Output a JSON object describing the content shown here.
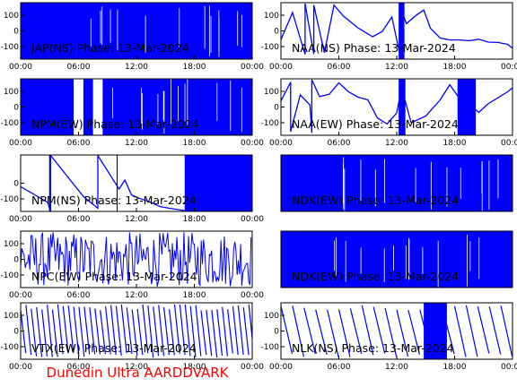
{
  "footer_title": "Dunedin Ultra AARDDVARK",
  "colors": {
    "trace": "#0000ff",
    "axes": "#000000",
    "footer": "#ff0000"
  },
  "chart_data": [
    {
      "type": "line",
      "title": "JAP(NS) Phase: 13-Mar-2024",
      "x_ticks": [
        "00:00",
        "06:00",
        "12:00",
        "18:00",
        "00:00"
      ],
      "y_ticks": [
        100,
        0,
        -100
      ],
      "ylim": [
        -180,
        180
      ],
      "series": [
        {
          "style": "dense-noise",
          "segments": [
            [
              0,
              24
            ]
          ]
        }
      ]
    },
    {
      "type": "line",
      "title": "NAA(NS) Phase: 13-Mar-2024",
      "x_ticks": [
        "00:00",
        "06:00",
        "12:00",
        "18:00",
        "00:00"
      ],
      "y_ticks": [
        100,
        0,
        -100
      ],
      "ylim": [
        -180,
        180
      ],
      "series": [
        {
          "style": "phase-drift",
          "points": [
            [
              0,
              -60
            ],
            [
              1.2,
              120
            ],
            [
              2.5,
              -150
            ],
            [
              2.5,
              170
            ],
            [
              3.4,
              -150
            ],
            [
              3.4,
              170
            ],
            [
              4.5,
              -140
            ],
            [
              5.5,
              170
            ],
            [
              6.5,
              90
            ],
            [
              8,
              20
            ],
            [
              9.5,
              -40
            ],
            [
              10.5,
              0
            ],
            [
              11.5,
              90
            ],
            [
              12.3,
              -140
            ],
            [
              12.3,
              170
            ],
            [
              13,
              40
            ],
            [
              14,
              100
            ],
            [
              14.8,
              140
            ],
            [
              15.5,
              20
            ],
            [
              16.5,
              -40
            ],
            [
              17.5,
              -60
            ],
            [
              18.5,
              -50
            ],
            [
              19.5,
              -60
            ],
            [
              20.5,
              -50
            ],
            [
              21.5,
              -70
            ],
            [
              22.5,
              -70
            ],
            [
              23.5,
              -90
            ],
            [
              24,
              -110
            ]
          ],
          "bands": [
            [
              12.2,
              12.8
            ]
          ]
        }
      ]
    },
    {
      "type": "line",
      "title": "NPM(EW) Phase: 13-Mar-2024",
      "x_ticks": [
        "00:00",
        "06:00",
        "12:00",
        "18:00",
        "00:00"
      ],
      "y_ticks": [
        100,
        0,
        -100
      ],
      "ylim": [
        -180,
        180
      ],
      "series": [
        {
          "style": "dense-noise",
          "segments": [
            [
              0,
              5.5
            ],
            [
              6.5,
              7.5
            ],
            [
              8.5,
              24
            ]
          ]
        }
      ]
    },
    {
      "type": "line",
      "title": "NAA(EW) Phase: 13-Mar-2024",
      "x_ticks": [
        "00:00",
        "06:00",
        "12:00",
        "18:00",
        "00:00"
      ],
      "y_ticks": [
        100,
        0,
        -100
      ],
      "ylim": [
        -180,
        180
      ],
      "series": [
        {
          "style": "phase-drift",
          "points": [
            [
              0,
              40
            ],
            [
              1,
              160
            ],
            [
              1,
              -150
            ],
            [
              2,
              80
            ],
            [
              3,
              10
            ],
            [
              3.2,
              -170
            ],
            [
              3.2,
              170
            ],
            [
              4,
              60
            ],
            [
              5,
              80
            ],
            [
              6,
              150
            ],
            [
              7,
              100
            ],
            [
              8,
              70
            ],
            [
              9,
              50
            ],
            [
              10,
              -70
            ],
            [
              11,
              -110
            ],
            [
              12,
              -40
            ],
            [
              12.5,
              120
            ],
            [
              13.5,
              -100
            ],
            [
              15,
              -60
            ],
            [
              16.5,
              40
            ],
            [
              17.5,
              140
            ],
            [
              18.5,
              60
            ],
            [
              19.5,
              20
            ],
            [
              20.5,
              -30
            ],
            [
              21.5,
              20
            ],
            [
              22.5,
              60
            ],
            [
              23.5,
              100
            ],
            [
              24,
              120
            ]
          ],
          "bands": [
            [
              12.2,
              12.9
            ],
            [
              18.3,
              20.2
            ]
          ]
        }
      ]
    },
    {
      "type": "line",
      "title": "NPM(NS) Phase: 13-Mar-2024",
      "x_ticks": [
        "00:00",
        "06:00",
        "12:00",
        "18:00",
        "00:00"
      ],
      "y_ticks": [
        0,
        -100
      ],
      "ylim": [
        -180,
        180
      ],
      "series": [
        {
          "style": "phase-drift",
          "points": [
            [
              0,
              -20
            ],
            [
              2.8,
              -120
            ],
            [
              3.1,
              -180
            ],
            [
              3.1,
              180
            ],
            [
              6.5,
              -80
            ],
            [
              8,
              -160
            ],
            [
              8,
              170
            ],
            [
              10.2,
              -40
            ],
            [
              10.8,
              20
            ],
            [
              11.5,
              -80
            ],
            [
              12.3,
              -100
            ],
            [
              13.5,
              -120
            ],
            [
              14.5,
              -150
            ],
            [
              15.5,
              -160
            ],
            [
              17,
              -170
            ]
          ],
          "bands": [
            [
              17,
              24
            ]
          ],
          "vlines": [
            3,
            10
          ]
        }
      ]
    },
    {
      "type": "line",
      "title": "NDK(EW) Phase: 13-Mar-2024",
      "x_ticks": [],
      "y_ticks": [],
      "ylim": [
        -180,
        180
      ],
      "series": [
        {
          "style": "dense-noise",
          "segments": [
            [
              0,
              24
            ]
          ]
        }
      ]
    },
    {
      "type": "line",
      "title": "NPC(EW) Phase: 13-Mar-2024",
      "x_ticks": [
        "00:00",
        "06:00",
        "12:00",
        "18:00",
        "00:00"
      ],
      "y_ticks": [
        100,
        0,
        -100
      ],
      "ylim": [
        -180,
        180
      ],
      "series": [
        {
          "style": "oscillating",
          "segments": [
            [
              0,
              24
            ]
          ]
        }
      ]
    },
    {
      "type": "line",
      "title": "NDK(EW) Phase: 13-Mar-2024",
      "x_ticks": [],
      "y_ticks": [],
      "ylim": [
        -180,
        180
      ],
      "series": [
        {
          "style": "dense-noise",
          "segments": [
            [
              0,
              24
            ]
          ]
        }
      ]
    },
    {
      "type": "line",
      "title": "VTX(EW) Phase: 13-Mar-2024",
      "x_ticks": [
        "00:00",
        "06:00",
        "12:00",
        "18:00",
        "00:00"
      ],
      "y_ticks": [
        100,
        0,
        -100
      ],
      "ylim": [
        -180,
        180
      ],
      "series": [
        {
          "style": "sawtooth",
          "period_h": 0.55,
          "segments": [
            [
              0,
              24
            ]
          ]
        }
      ]
    },
    {
      "type": "line",
      "title": "NLK(NS) Phase: 13-Mar-2024",
      "x_ticks": [
        "00:00",
        "06:00",
        "12:00",
        "18:00",
        "00:00"
      ],
      "y_ticks": [
        100,
        0,
        -100
      ],
      "ylim": [
        -180,
        180
      ],
      "series": [
        {
          "style": "sawtooth",
          "period_h": 1.2,
          "segments": [
            [
              0,
              24
            ]
          ],
          "bands": [
            [
              14.8,
              17.2
            ]
          ]
        }
      ]
    }
  ]
}
